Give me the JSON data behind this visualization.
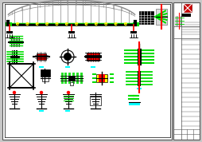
{
  "bg_color": "#c8c8c8",
  "paper_color": "#ffffff",
  "gray_color": "#888888",
  "green": "#00dd00",
  "red": "#ff0000",
  "yellow": "#ffff00",
  "black": "#000000",
  "cyan": "#00ffff",
  "lt_gray": "#bbbbbb"
}
